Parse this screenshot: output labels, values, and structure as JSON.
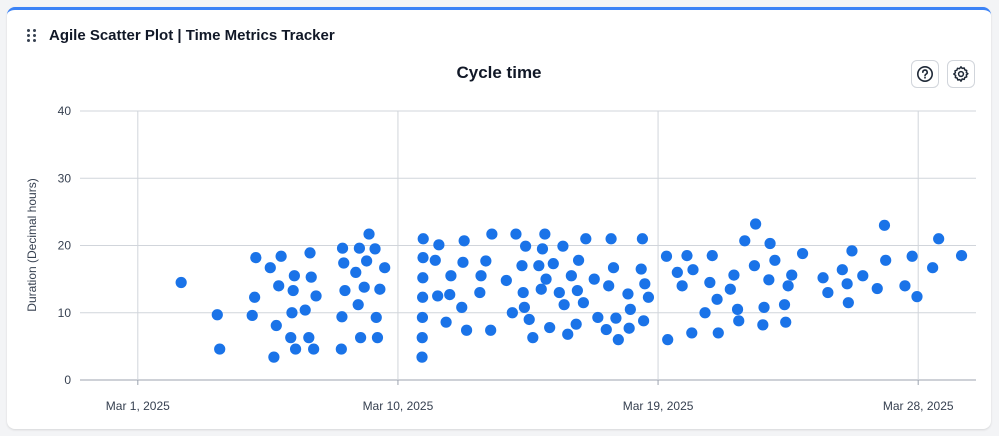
{
  "widget": {
    "title": "Agile Scatter Plot | Time Metrics Tracker",
    "help_icon": "help-circle-icon",
    "settings_icon": "gear-icon",
    "drag_icon": "drag-handle-icon"
  },
  "colors": {
    "accent": "#3b82f6",
    "point": "#1a73e8",
    "grid": "#d1d5db"
  },
  "chart_data": {
    "type": "scatter",
    "title": "Cycle time",
    "xlabel": "",
    "ylabel": "Duration (Decimal hours)",
    "ylim": [
      0,
      40
    ],
    "yticks": [
      0,
      10,
      20,
      30,
      40
    ],
    "xlim": [
      "2025-02-27",
      "2025-03-30"
    ],
    "xticks": [
      {
        "date": "2025-03-01",
        "label": "Mar 1, 2025"
      },
      {
        "date": "2025-03-10",
        "label": "Mar 10, 2025"
      },
      {
        "date": "2025-03-19",
        "label": "Mar 19, 2025"
      },
      {
        "date": "2025-03-28",
        "label": "Mar 28, 2025"
      }
    ],
    "grid": true,
    "points": [
      [
        "2025-03-02 12:00",
        14.5
      ],
      [
        "2025-03-03 18:00",
        9.7
      ],
      [
        "2025-03-03 20:00",
        4.6
      ],
      [
        "2025-03-04 23:00",
        9.6
      ],
      [
        "2025-03-05 01:00",
        12.3
      ],
      [
        "2025-03-05 02:00",
        18.2
      ],
      [
        "2025-03-05 14:00",
        16.7
      ],
      [
        "2025-03-05 17:00",
        3.4
      ],
      [
        "2025-03-05 19:00",
        8.1
      ],
      [
        "2025-03-05 21:00",
        14.0
      ],
      [
        "2025-03-05 23:00",
        18.4
      ],
      [
        "2025-03-06 07:00",
        6.3
      ],
      [
        "2025-03-06 08:00",
        10.0
      ],
      [
        "2025-03-06 09:00",
        13.3
      ],
      [
        "2025-03-06 10:00",
        15.5
      ],
      [
        "2025-03-06 11:00",
        4.6
      ],
      [
        "2025-03-06 19:00",
        10.4
      ],
      [
        "2025-03-06 22:00",
        6.3
      ],
      [
        "2025-03-06 23:00",
        18.9
      ],
      [
        "2025-03-07 00:00",
        15.3
      ],
      [
        "2025-03-07 02:00",
        4.6
      ],
      [
        "2025-03-07 04:00",
        12.5
      ],
      [
        "2025-03-08 01:00",
        4.6
      ],
      [
        "2025-03-08 01:30",
        9.4
      ],
      [
        "2025-03-08 02:00",
        19.6
      ],
      [
        "2025-03-08 03:00",
        17.4
      ],
      [
        "2025-03-08 04:00",
        13.3
      ],
      [
        "2025-03-08 13:00",
        16.0
      ],
      [
        "2025-03-08 15:00",
        11.2
      ],
      [
        "2025-03-08 16:00",
        19.6
      ],
      [
        "2025-03-08 17:00",
        6.3
      ],
      [
        "2025-03-08 20:00",
        13.8
      ],
      [
        "2025-03-08 22:00",
        17.7
      ],
      [
        "2025-03-09 00:00",
        21.7
      ],
      [
        "2025-03-09 05:00",
        19.5
      ],
      [
        "2025-03-09 06:00",
        9.3
      ],
      [
        "2025-03-09 07:00",
        6.3
      ],
      [
        "2025-03-09 09:00",
        13.5
      ],
      [
        "2025-03-09 13:00",
        16.7
      ],
      [
        "2025-03-10 20:00",
        3.4
      ],
      [
        "2025-03-10 20:10",
        6.3
      ],
      [
        "2025-03-10 20:20",
        9.3
      ],
      [
        "2025-03-10 20:30",
        12.3
      ],
      [
        "2025-03-10 20:40",
        15.2
      ],
      [
        "2025-03-10 20:50",
        18.2
      ],
      [
        "2025-03-10 21:00",
        21.0
      ],
      [
        "2025-03-11 07:00",
        17.8
      ],
      [
        "2025-03-11 09:00",
        12.5
      ],
      [
        "2025-03-11 10:00",
        20.1
      ],
      [
        "2025-03-11 16:00",
        8.6
      ],
      [
        "2025-03-11 19:00",
        12.7
      ],
      [
        "2025-03-11 20:00",
        15.5
      ],
      [
        "2025-03-12 05:00",
        10.8
      ],
      [
        "2025-03-12 06:00",
        17.5
      ],
      [
        "2025-03-12 07:00",
        20.7
      ],
      [
        "2025-03-12 09:00",
        7.4
      ],
      [
        "2025-03-12 20:00",
        13.0
      ],
      [
        "2025-03-12 21:00",
        15.5
      ],
      [
        "2025-03-13 01:00",
        17.7
      ],
      [
        "2025-03-13 05:00",
        7.4
      ],
      [
        "2025-03-13 06:00",
        21.7
      ],
      [
        "2025-03-13 18:00",
        14.8
      ],
      [
        "2025-03-13 23:00",
        10.0
      ],
      [
        "2025-03-14 02:00",
        21.7
      ],
      [
        "2025-03-14 07:00",
        17.0
      ],
      [
        "2025-03-14 08:00",
        13.0
      ],
      [
        "2025-03-14 09:00",
        10.8
      ],
      [
        "2025-03-14 10:00",
        19.9
      ],
      [
        "2025-03-14 13:00",
        9.0
      ],
      [
        "2025-03-14 16:00",
        6.3
      ],
      [
        "2025-03-14 21:00",
        17.0
      ],
      [
        "2025-03-14 23:00",
        13.5
      ],
      [
        "2025-03-15 00:00",
        19.5
      ],
      [
        "2025-03-15 02:00",
        21.7
      ],
      [
        "2025-03-15 03:00",
        15.0
      ],
      [
        "2025-03-15 06:00",
        7.8
      ],
      [
        "2025-03-15 09:00",
        17.3
      ],
      [
        "2025-03-15 14:00",
        13.0
      ],
      [
        "2025-03-15 17:00",
        19.9
      ],
      [
        "2025-03-15 18:00",
        11.2
      ],
      [
        "2025-03-15 21:00",
        6.8
      ],
      [
        "2025-03-16 00:00",
        15.5
      ],
      [
        "2025-03-16 04:00",
        8.3
      ],
      [
        "2025-03-16 05:00",
        13.3
      ],
      [
        "2025-03-16 06:00",
        17.8
      ],
      [
        "2025-03-16 10:00",
        11.5
      ],
      [
        "2025-03-16 12:00",
        21.0
      ],
      [
        "2025-03-16 19:00",
        15.0
      ],
      [
        "2025-03-16 22:00",
        9.3
      ],
      [
        "2025-03-17 05:00",
        7.5
      ],
      [
        "2025-03-17 07:00",
        14.0
      ],
      [
        "2025-03-17 09:00",
        21.0
      ],
      [
        "2025-03-17 11:00",
        16.7
      ],
      [
        "2025-03-17 13:00",
        9.2
      ],
      [
        "2025-03-17 15:00",
        6.0
      ],
      [
        "2025-03-17 23:00",
        12.8
      ],
      [
        "2025-03-18 00:00",
        7.7
      ],
      [
        "2025-03-18 01:00",
        10.5
      ],
      [
        "2025-03-18 10:00",
        16.5
      ],
      [
        "2025-03-18 11:00",
        21.0
      ],
      [
        "2025-03-18 12:00",
        8.8
      ],
      [
        "2025-03-18 13:00",
        14.3
      ],
      [
        "2025-03-18 16:00",
        12.3
      ],
      [
        "2025-03-19 07:00",
        18.4
      ],
      [
        "2025-03-19 08:00",
        6.0
      ],
      [
        "2025-03-19 16:00",
        16.0
      ],
      [
        "2025-03-19 20:00",
        14.0
      ],
      [
        "2025-03-20 00:00",
        18.5
      ],
      [
        "2025-03-20 04:00",
        7.0
      ],
      [
        "2025-03-20 05:00",
        16.4
      ],
      [
        "2025-03-20 15:00",
        10.0
      ],
      [
        "2025-03-20 19:00",
        14.5
      ],
      [
        "2025-03-20 21:00",
        18.5
      ],
      [
        "2025-03-21 01:00",
        12.0
      ],
      [
        "2025-03-21 02:00",
        7.0
      ],
      [
        "2025-03-21 12:00",
        13.5
      ],
      [
        "2025-03-21 15:00",
        15.6
      ],
      [
        "2025-03-21 18:00",
        10.5
      ],
      [
        "2025-03-21 19:00",
        8.8
      ],
      [
        "2025-03-22 00:00",
        20.7
      ],
      [
        "2025-03-22 08:00",
        17.0
      ],
      [
        "2025-03-22 09:00",
        23.2
      ],
      [
        "2025-03-22 15:00",
        8.2
      ],
      [
        "2025-03-22 16:00",
        10.8
      ],
      [
        "2025-03-22 20:00",
        14.9
      ],
      [
        "2025-03-22 21:00",
        20.3
      ],
      [
        "2025-03-23 01:00",
        17.8
      ],
      [
        "2025-03-23 09:00",
        11.2
      ],
      [
        "2025-03-23 10:00",
        8.6
      ],
      [
        "2025-03-23 12:00",
        14.0
      ],
      [
        "2025-03-23 15:00",
        15.6
      ],
      [
        "2025-03-24 00:00",
        18.8
      ],
      [
        "2025-03-24 17:00",
        15.2
      ],
      [
        "2025-03-24 21:00",
        13.0
      ],
      [
        "2025-03-25 09:00",
        16.4
      ],
      [
        "2025-03-25 13:00",
        14.3
      ],
      [
        "2025-03-25 14:00",
        11.5
      ],
      [
        "2025-03-25 17:00",
        19.2
      ],
      [
        "2025-03-26 02:00",
        15.5
      ],
      [
        "2025-03-26 14:00",
        13.6
      ],
      [
        "2025-03-26 20:00",
        23.0
      ],
      [
        "2025-03-26 21:00",
        17.8
      ],
      [
        "2025-03-27 13:00",
        14.0
      ],
      [
        "2025-03-27 19:00",
        18.4
      ],
      [
        "2025-03-27 23:00",
        12.4
      ],
      [
        "2025-03-28 12:00",
        16.7
      ],
      [
        "2025-03-28 17:00",
        21.0
      ],
      [
        "2025-03-29 12:00",
        18.5
      ]
    ]
  }
}
